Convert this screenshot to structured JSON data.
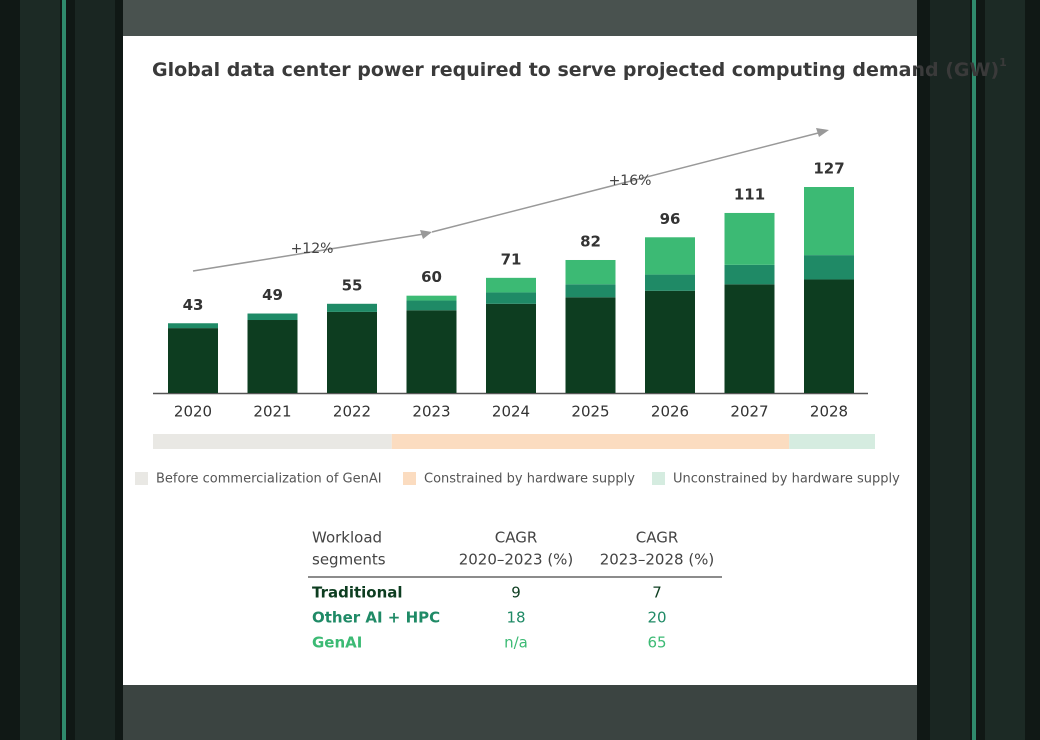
{
  "chart_data": {
    "type": "stacked-bar",
    "title": "Global data center power required to serve projected computing demand (GW)",
    "title_note": "1",
    "categories": [
      "2020",
      "2021",
      "2022",
      "2023",
      "2024",
      "2025",
      "2026",
      "2027",
      "2028"
    ],
    "series": [
      {
        "name": "Traditional",
        "color": "#0d3d20",
        "values": [
          40,
          45,
          50,
          51,
          55,
          59,
          63,
          67,
          70
        ]
      },
      {
        "name": "Other AI + HPC",
        "color": "#1f8a66",
        "values": [
          3,
          4,
          5,
          6,
          7,
          8,
          10,
          12,
          15
        ]
      },
      {
        "name": "GenAI",
        "color": "#3cba74",
        "values": [
          0,
          0,
          0,
          3,
          9,
          15,
          23,
          32,
          42
        ]
      }
    ],
    "totals": [
      43,
      49,
      55,
      60,
      71,
      82,
      96,
      111,
      127
    ],
    "annotations": [
      "+12%",
      "+16%"
    ],
    "periods": [
      {
        "label": "Before commercialization of GenAI",
        "color": "#e9e8e4",
        "start": "2020",
        "end": "2022"
      },
      {
        "label": "Constrained by hardware supply",
        "color": "#fbdcc0",
        "start": "2023",
        "end": "2027"
      },
      {
        "label": "Unconstrained by hardware supply",
        "color": "#d5ece0",
        "start": "2028",
        "end": "2028"
      }
    ]
  },
  "table": {
    "header": [
      [
        "Workload",
        "segments"
      ],
      [
        "CAGR",
        "2020–2023 (%)"
      ],
      [
        "CAGR",
        "2023–2028 (%)"
      ]
    ],
    "rows": [
      {
        "values": [
          9,
          7
        ]
      },
      {
        "values": [
          18,
          20
        ]
      },
      {
        "values": [
          "n/a",
          65
        ]
      }
    ]
  }
}
